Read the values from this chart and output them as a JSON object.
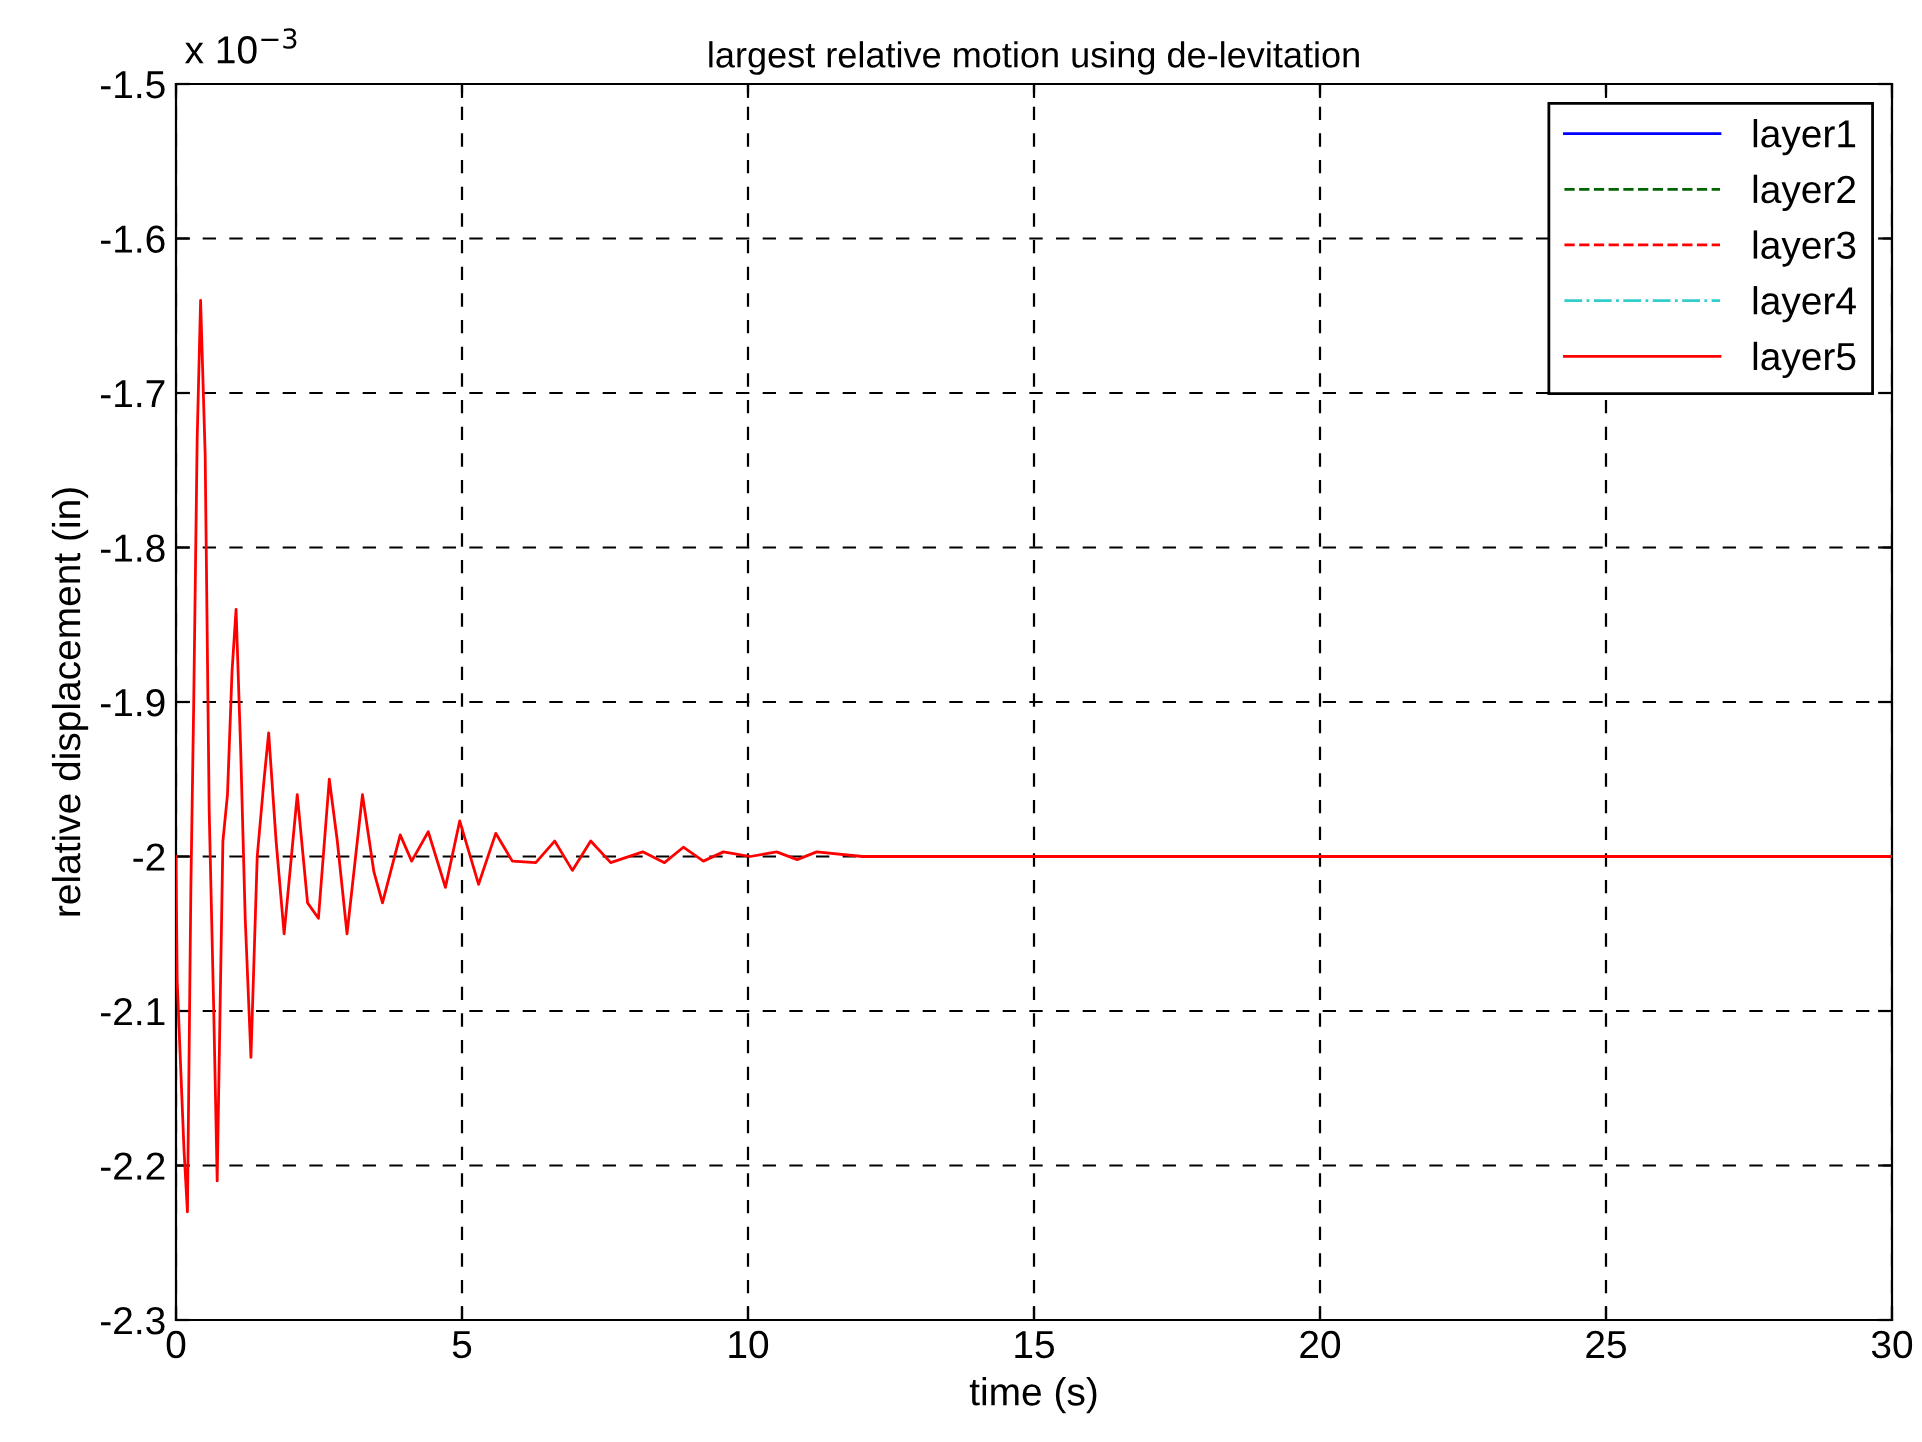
{
  "chart_data": {
    "type": "line",
    "title": "largest relative motion using de-levitation",
    "xlabel": "time (s)",
    "ylabel": "relative displacement (in)",
    "annotations": [
      "x 10$^{−3}$"
    ],
    "x": [
      0,
      0.02,
      0.14,
      0.2,
      0.26,
      0.31,
      0.37,
      0.43,
      0.51,
      0.58,
      0.66,
      0.72,
      0.82,
      0.9,
      0.98,
      1.05,
      1.13,
      1.21,
      1.31,
      1.42,
      1.54,
      1.62,
      1.75,
      1.89,
      2.12,
      2.3,
      2.49,
      2.68,
      2.82,
      2.99,
      3.26,
      3.46,
      3.61,
      3.92,
      4.12,
      4.41,
      4.71,
      4.96,
      5.29,
      5.59,
      5.88,
      6.29,
      6.62,
      6.93,
      7.25,
      7.6,
      8.16,
      8.54,
      8.87,
      9.22,
      9.57,
      10.04,
      10.5,
      10.86,
      11.2,
      12,
      15,
      20,
      25,
      30
    ],
    "series": [
      {
        "name": "layer1",
        "color": "#0000ff",
        "line_style": "solid",
        "values": [
          null,
          null,
          null,
          null,
          null,
          null,
          null,
          null,
          null,
          null,
          null,
          null,
          null,
          null,
          null,
          null,
          null,
          null,
          null,
          null,
          null,
          null,
          null,
          null,
          null,
          null,
          null,
          null,
          null,
          null,
          null,
          null,
          null,
          null,
          null,
          null,
          null,
          null,
          null,
          null,
          null,
          null,
          null,
          null,
          null,
          null,
          null,
          null,
          null,
          null,
          null,
          null,
          null,
          null,
          null,
          null,
          null,
          null,
          null,
          null
        ]
      },
      {
        "name": "layer2",
        "color": "#006400",
        "line_style": "dashed",
        "values": [
          null,
          null,
          null,
          null,
          null,
          null,
          null,
          null,
          null,
          null,
          null,
          null,
          null,
          null,
          null,
          null,
          null,
          null,
          null,
          null,
          null,
          null,
          null,
          null,
          null,
          null,
          null,
          null,
          null,
          null,
          null,
          null,
          null,
          null,
          null,
          null,
          null,
          null,
          null,
          null,
          null,
          null,
          null,
          null,
          null,
          null,
          null,
          null,
          null,
          null,
          null,
          null,
          null,
          null,
          null,
          null,
          null,
          null,
          null,
          null
        ]
      },
      {
        "name": "layer3",
        "color": "#ff0000",
        "line_style": "dashed",
        "values": [
          null,
          null,
          null,
          null,
          null,
          null,
          null,
          null,
          null,
          null,
          null,
          null,
          null,
          null,
          null,
          null,
          null,
          null,
          null,
          null,
          null,
          null,
          null,
          null,
          null,
          null,
          null,
          null,
          null,
          null,
          null,
          null,
          null,
          null,
          null,
          null,
          null,
          null,
          null,
          null,
          null,
          null,
          null,
          null,
          null,
          null,
          null,
          null,
          null,
          null,
          null,
          null,
          null,
          null,
          null,
          null,
          null,
          null,
          null,
          null
        ]
      },
      {
        "name": "layer4",
        "color": "#33cccc",
        "line_style": "dashdot",
        "values": [
          null,
          null,
          null,
          null,
          null,
          null,
          null,
          null,
          null,
          null,
          null,
          null,
          null,
          null,
          null,
          null,
          null,
          null,
          null,
          null,
          null,
          null,
          null,
          null,
          null,
          null,
          null,
          null,
          null,
          null,
          null,
          null,
          null,
          null,
          null,
          null,
          null,
          null,
          null,
          null,
          null,
          null,
          null,
          null,
          null,
          null,
          null,
          null,
          null,
          null,
          null,
          null,
          null,
          null,
          null,
          null,
          null,
          null,
          null,
          null
        ]
      },
      {
        "name": "layer5",
        "color": "#ff0000",
        "line_style": "solid",
        "values": [
          -2.0,
          -2.08,
          -2.19,
          -2.23,
          -2.02,
          -1.9,
          -1.73,
          -1.64,
          -1.74,
          -1.97,
          -2.1,
          -2.21,
          -1.99,
          -1.96,
          -1.88,
          -1.84,
          -1.93,
          -2.04,
          -2.13,
          -2.0,
          -1.95,
          -1.92,
          -1.99,
          -2.05,
          -1.96,
          -2.03,
          -2.04,
          -1.95,
          -1.99,
          -2.05,
          -1.96,
          -2.01,
          -2.03,
          -1.986,
          -2.003,
          -1.984,
          -2.02,
          -1.977,
          -2.018,
          -1.985,
          -2.003,
          -2.004,
          -1.99,
          -2.009,
          -1.99,
          -2.004,
          -1.997,
          -2.004,
          -1.994,
          -2.003,
          -1.997,
          -2.0,
          -1.997,
          -2.002,
          -1.997,
          -2.0,
          -2.0,
          -2.0,
          -2.0,
          -2.0
        ]
      }
    ],
    "xlim": [
      0,
      30
    ],
    "xticks": [
      0,
      5,
      10,
      15,
      20,
      25,
      30
    ],
    "ylim": [
      -2.3,
      -1.5
    ],
    "yticks": [
      {
        "value": -2.3,
        "label": "-2.3"
      },
      {
        "value": -2.2,
        "label": "-2.2"
      },
      {
        "value": -2.1,
        "label": "-2.1"
      },
      {
        "value": -2.0,
        "label": "-2"
      },
      {
        "value": -1.9,
        "label": "-1.9"
      },
      {
        "value": -1.8,
        "label": "-1.8"
      },
      {
        "value": -1.7,
        "label": "-1.7"
      },
      {
        "value": -1.6,
        "label": "-1.6"
      },
      {
        "value": -1.5,
        "label": "-1.5"
      }
    ],
    "grid": true,
    "legend": "top right",
    "marker": "none"
  }
}
